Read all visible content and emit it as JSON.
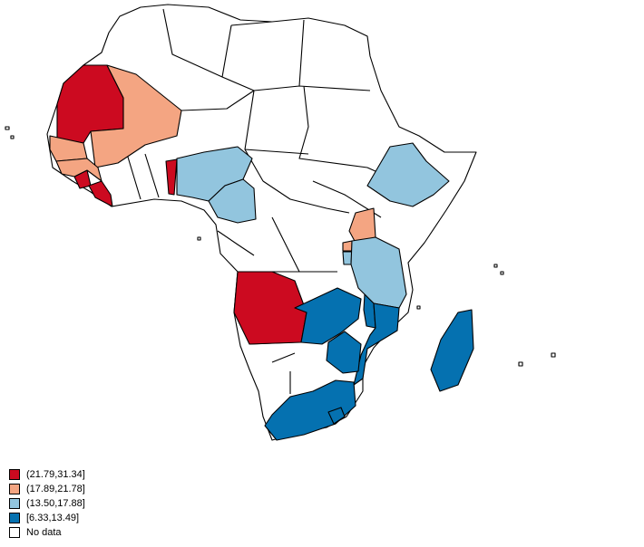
{
  "map": {
    "region": "Africa",
    "colors": {
      "bin1": "#cc0a20",
      "bin2": "#f4a582",
      "bin3": "#92c5de",
      "bin4": "#0571b0",
      "nodata": "#ffffff",
      "border": "#000000"
    },
    "countries": [
      {
        "name": "Mauritania",
        "bin": "bin1"
      },
      {
        "name": "Mali",
        "bin": "bin2"
      },
      {
        "name": "Senegal",
        "bin": "bin2"
      },
      {
        "name": "Guinea",
        "bin": "bin2"
      },
      {
        "name": "Sierra Leone",
        "bin": "bin1"
      },
      {
        "name": "Liberia",
        "bin": "bin1"
      },
      {
        "name": "Benin",
        "bin": "bin1"
      },
      {
        "name": "Nigeria",
        "bin": "bin3"
      },
      {
        "name": "Cameroon",
        "bin": "bin3"
      },
      {
        "name": "Ethiopia",
        "bin": "bin3"
      },
      {
        "name": "Uganda",
        "bin": "bin2"
      },
      {
        "name": "Rwanda",
        "bin": "bin2"
      },
      {
        "name": "Burundi",
        "bin": "bin3"
      },
      {
        "name": "Tanzania",
        "bin": "bin3"
      },
      {
        "name": "Angola",
        "bin": "bin1"
      },
      {
        "name": "Zambia",
        "bin": "bin4"
      },
      {
        "name": "Malawi",
        "bin": "bin4"
      },
      {
        "name": "Mozambique",
        "bin": "bin4"
      },
      {
        "name": "Zimbabwe",
        "bin": "bin4"
      },
      {
        "name": "South Africa",
        "bin": "bin4"
      },
      {
        "name": "Madagascar",
        "bin": "bin4"
      }
    ]
  },
  "legend": {
    "items": [
      {
        "label": "(21.79,31.34]",
        "color": "#cc0a20"
      },
      {
        "label": "(17.89,21.78]",
        "color": "#f4a582"
      },
      {
        "label": "(13.50,17.88]",
        "color": "#92c5de"
      },
      {
        "label": "[6.33,13.49]",
        "color": "#0571b0"
      },
      {
        "label": "No data",
        "color": "#ffffff"
      }
    ]
  }
}
